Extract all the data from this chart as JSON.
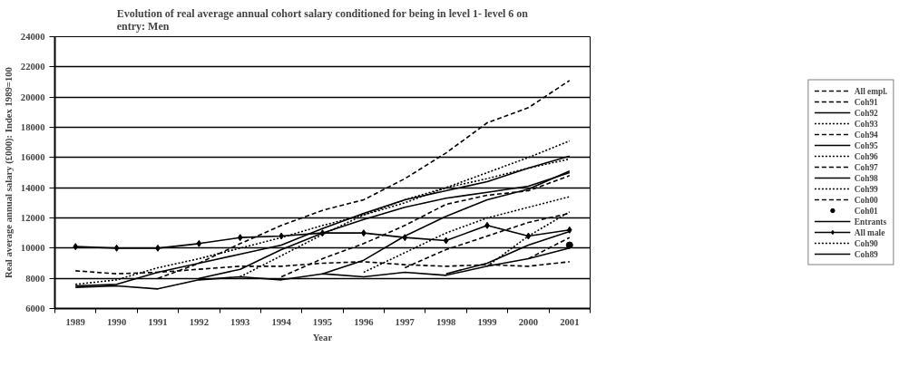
{
  "chart_data": {
    "type": "line",
    "title": "Evolution of real average annual cohort salary conditioned for being in level 1- level 6 on entry: Men",
    "xlabel": "Year",
    "ylabel": "Real average annual salary (£000): Index 1989=100",
    "categories": [
      "1989",
      "1990",
      "1991",
      "1992",
      "1993",
      "1994",
      "1995",
      "1996",
      "1997",
      "1998",
      "1999",
      "2000",
      "2001"
    ],
    "ylim": [
      6000,
      24000
    ],
    "yticks": [
      6000,
      8000,
      10000,
      12000,
      14000,
      16000,
      18000,
      20000,
      22000,
      24000
    ],
    "grid": "y",
    "legend": "right",
    "series": [
      {
        "name": "All empl.",
        "color": "#000000",
        "line_style": "dashed",
        "values": [
          8500,
          8300,
          8400,
          8600,
          8800,
          8800,
          9000,
          9100,
          8900,
          8800,
          8900,
          8800,
          9100
        ]
      },
      {
        "name": "Coh91",
        "color": "#000000",
        "line_style": "dashed",
        "values": [
          null,
          null,
          8000,
          9000,
          10300,
          11500,
          12500,
          13200,
          14600,
          16300,
          18300,
          19300,
          21100
        ]
      },
      {
        "name": "Coh92",
        "color": "#000000",
        "line_style": "solid",
        "values": [
          null,
          null,
          null,
          8000,
          8600,
          9900,
          11000,
          11900,
          12700,
          13300,
          13700,
          14100,
          15000
        ]
      },
      {
        "name": "Coh93",
        "color": "#000000",
        "line_style": "dotted",
        "values": [
          null,
          null,
          null,
          null,
          8100,
          9500,
          10900,
          12200,
          13200,
          14000,
          14600,
          15300,
          15900
        ]
      },
      {
        "name": "Coh94",
        "color": "#000000",
        "line_style": "dashed",
        "values": [
          null,
          null,
          null,
          null,
          null,
          8100,
          9300,
          10300,
          11500,
          12900,
          13500,
          13800,
          14800
        ]
      },
      {
        "name": "Coh95",
        "color": "#000000",
        "line_style": "solid",
        "values": [
          null,
          null,
          null,
          null,
          null,
          null,
          8300,
          9200,
          10800,
          12100,
          13200,
          13900,
          15100
        ]
      },
      {
        "name": "Coh96",
        "color": "#000000",
        "line_style": "dotted",
        "values": [
          null,
          null,
          null,
          null,
          null,
          null,
          null,
          8400,
          9700,
          11000,
          12000,
          12700,
          13400
        ]
      },
      {
        "name": "Coh97",
        "color": "#000000",
        "line_style": "dashed",
        "values": [
          null,
          null,
          null,
          null,
          null,
          null,
          null,
          null,
          8700,
          9900,
          10800,
          11700,
          12300
        ]
      },
      {
        "name": "Coh98",
        "color": "#000000",
        "line_style": "solid",
        "values": [
          null,
          null,
          null,
          null,
          null,
          null,
          null,
          null,
          null,
          8300,
          9000,
          10200,
          11100
        ]
      },
      {
        "name": "Coh99",
        "color": "#000000",
        "line_style": "dotted",
        "values": [
          null,
          null,
          null,
          null,
          null,
          null,
          null,
          null,
          null,
          null,
          8800,
          10800,
          12400
        ]
      },
      {
        "name": "Coh00",
        "color": "#000000",
        "line_style": "dashed",
        "values": [
          null,
          null,
          null,
          null,
          null,
          null,
          null,
          null,
          null,
          null,
          null,
          9300,
          10700
        ]
      },
      {
        "name": "Coh01",
        "color": "#000000",
        "type": "scatter",
        "marker": "circle",
        "values": [
          null,
          null,
          null,
          null,
          null,
          null,
          null,
          null,
          null,
          null,
          null,
          null,
          10200
        ]
      },
      {
        "name": "Entrants",
        "color": "#000000",
        "line_style": "solid",
        "values": [
          7400,
          7500,
          7300,
          7900,
          8100,
          7900,
          8300,
          8100,
          8400,
          8200,
          8800,
          9300,
          10000
        ]
      },
      {
        "name": "All male",
        "color": "#000000",
        "line_style": "solid",
        "marker": "diamond",
        "values": [
          10100,
          10000,
          10000,
          10300,
          10700,
          10800,
          11000,
          11000,
          10700,
          10500,
          11500,
          10800,
          11200
        ]
      },
      {
        "name": "Coh90",
        "color": "#000000",
        "line_style": "dotted",
        "values": [
          7600,
          7900,
          8700,
          9300,
          10000,
          10700,
          11500,
          12200,
          13000,
          14000,
          15000,
          16000,
          17100
        ]
      },
      {
        "name": "Coh89",
        "color": "#000000",
        "line_style": "solid",
        "values": [
          7500,
          7600,
          8400,
          9000,
          9600,
          10200,
          11300,
          12300,
          13200,
          13800,
          14400,
          15300,
          16100
        ]
      }
    ]
  }
}
